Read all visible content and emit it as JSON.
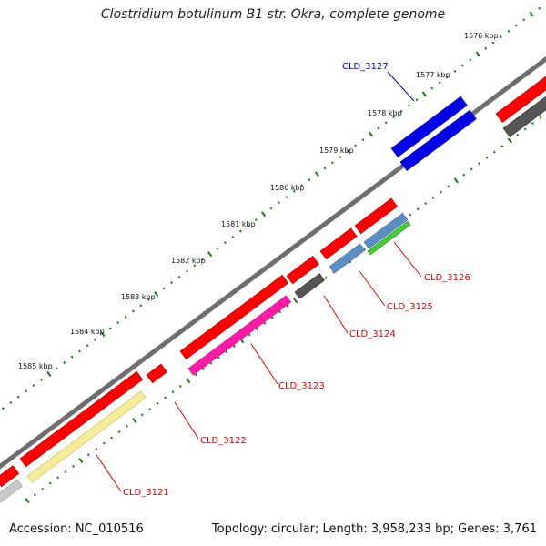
{
  "title": "Clostridium botulinum B1 str. Okra, complete genome",
  "footer": {
    "accession": "Accession: NC_010516",
    "stats": "Topology: circular; Length: 3,958,233 bp; Genes: 3,761"
  },
  "scale_labels": [
    "1576 kbp",
    "1577 kbp",
    "1578 kbp",
    "1579 kbp",
    "1580 kbp",
    "1581 kbp",
    "1582 kbp",
    "1583 kbp",
    "1584 kbp",
    "1585 kbp"
  ],
  "gene_labels": {
    "g3127": "CLD_3127",
    "g3126": "CLD_3126",
    "g3125": "CLD_3125",
    "g3124": "CLD_3124",
    "g3123": "CLD_3123",
    "g3122": "CLD_3122",
    "g3121": "CLD_3121"
  },
  "colors": {
    "forward_gene": "#ff0000",
    "highlight_gene": "#0000e6",
    "backbone": "#777777",
    "tick": "#1a7a1a",
    "label_red": "#e00000",
    "label_blue": "#0000cc",
    "pink": "#ff1aa8",
    "yellow": "#f5ec9a",
    "steel": "#5b8fc4",
    "green": "#44cc33",
    "dark": "#555555",
    "light": "#c8c8c8"
  }
}
